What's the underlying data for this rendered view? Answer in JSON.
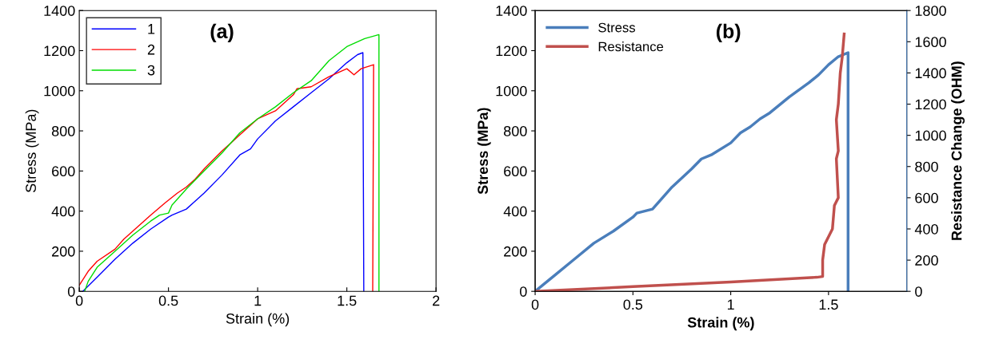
{
  "chart_data": [
    {
      "type": "line",
      "title": "(a)",
      "xlabel": "Strain (%)",
      "ylabel": "Stress (MPa)",
      "xlim": [
        0,
        2
      ],
      "ylim": [
        0,
        1400
      ],
      "xticks": [
        0,
        0.5,
        1,
        1.5,
        2
      ],
      "yticks": [
        0,
        200,
        400,
        600,
        800,
        1000,
        1200,
        1400
      ],
      "legend": "top left",
      "grid": false,
      "series": [
        {
          "name": "1",
          "color": "#0000ff",
          "x": [
            0.02,
            0.1,
            0.2,
            0.3,
            0.4,
            0.5,
            0.52,
            0.6,
            0.7,
            0.8,
            0.9,
            0.96,
            1.0,
            1.1,
            1.2,
            1.3,
            1.4,
            1.5,
            1.56,
            1.59,
            1.595
          ],
          "values": [
            0,
            70,
            160,
            240,
            310,
            370,
            380,
            410,
            490,
            580,
            680,
            710,
            760,
            850,
            920,
            990,
            1060,
            1140,
            1180,
            1190,
            0
          ]
        },
        {
          "name": "2",
          "color": "#ff0000",
          "x": [
            0,
            0.05,
            0.1,
            0.2,
            0.25,
            0.3,
            0.4,
            0.48,
            0.55,
            0.6,
            0.65,
            0.7,
            0.8,
            0.85,
            0.9,
            1.0,
            1.1,
            1.2,
            1.22,
            1.3,
            1.4,
            1.5,
            1.54,
            1.58,
            1.65,
            1.645
          ],
          "values": [
            30,
            100,
            150,
            210,
            260,
            300,
            380,
            440,
            490,
            520,
            560,
            610,
            700,
            740,
            780,
            860,
            900,
            980,
            1010,
            1020,
            1070,
            1110,
            1080,
            1110,
            1130,
            0
          ]
        },
        {
          "name": "3",
          "color": "#00dd00",
          "x": [
            0.03,
            0.05,
            0.1,
            0.2,
            0.3,
            0.4,
            0.45,
            0.5,
            0.52,
            0.6,
            0.7,
            0.8,
            0.9,
            1.0,
            1.1,
            1.2,
            1.3,
            1.4,
            1.5,
            1.6,
            1.68,
            1.68
          ],
          "values": [
            0,
            50,
            120,
            200,
            280,
            350,
            380,
            390,
            430,
            510,
            600,
            690,
            790,
            860,
            920,
            990,
            1050,
            1150,
            1220,
            1260,
            1280,
            0
          ]
        }
      ]
    },
    {
      "type": "line",
      "title": "(b)",
      "xlabel": "Strain (%)",
      "ylabel": "Stress (MPa)",
      "y2label": "Resistance Change (OHM)",
      "xlim": [
        0,
        1.9
      ],
      "ylim": [
        0,
        1400
      ],
      "y2lim": [
        0,
        1800
      ],
      "xticks": [
        0,
        0.5,
        1,
        1.5
      ],
      "yticks": [
        0,
        200,
        400,
        600,
        800,
        1000,
        1200,
        1400
      ],
      "y2ticks": [
        0,
        200,
        400,
        600,
        800,
        1000,
        1200,
        1400,
        1600,
        1800
      ],
      "legend": "top left",
      "grid": false,
      "series": [
        {
          "name": "Stress",
          "color": "#4a7ebb",
          "x": [
            0,
            0.05,
            0.1,
            0.2,
            0.3,
            0.4,
            0.5,
            0.52,
            0.6,
            0.7,
            0.8,
            0.85,
            0.9,
            1.0,
            1.05,
            1.1,
            1.15,
            1.2,
            1.3,
            1.4,
            1.45,
            1.5,
            1.55,
            1.6,
            1.6
          ],
          "values": [
            0,
            40,
            80,
            160,
            240,
            300,
            370,
            390,
            410,
            520,
            610,
            660,
            680,
            740,
            790,
            820,
            860,
            890,
            970,
            1040,
            1080,
            1130,
            1170,
            1190,
            0
          ]
        },
        {
          "name": "Resistance",
          "color": "#c0504d",
          "axis": "y2",
          "x": [
            0,
            0.5,
            1.0,
            1.44,
            1.47,
            1.47,
            1.48,
            1.5,
            1.52,
            1.53,
            1.55,
            1.54,
            1.55,
            1.54,
            1.55,
            1.56,
            1.57,
            1.58
          ],
          "values": [
            0,
            30,
            60,
            90,
            95,
            200,
            300,
            350,
            400,
            550,
            600,
            850,
            900,
            1100,
            1200,
            1400,
            1500,
            1650
          ]
        }
      ]
    }
  ]
}
